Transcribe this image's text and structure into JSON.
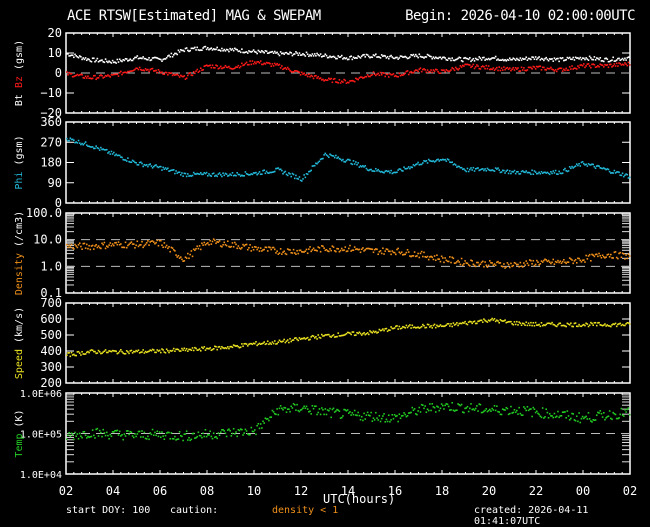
{
  "header": {
    "title": "ACE RTSW[Estimated] MAG & SWEPAM",
    "begin": "Begin: 2026-04-10 02:00:00UTC"
  },
  "footer": {
    "start_doy": "start DOY: 100",
    "caution": "caution:",
    "caution_note": "density < 1",
    "created": "created: 2026-04-11 01:41:07UTC"
  },
  "xaxis": {
    "label": "UTC(hours)",
    "ticks": [
      "02",
      "04",
      "06",
      "08",
      "10",
      "12",
      "14",
      "16",
      "18",
      "20",
      "22",
      "00",
      "02"
    ]
  },
  "colors": {
    "bt": "#ffffff",
    "bz": "#ff1a1a",
    "phi": "#22b8d8",
    "density": "#f0901a",
    "speed": "#e8e020",
    "temp": "#22cc22",
    "axis": "#ffffff",
    "dashed": "#bbbbbb"
  },
  "chart_data": [
    {
      "type": "scatter",
      "title": "Bt / Bz",
      "ylabel": "Bt  Bz  (gsm)",
      "ylim": [
        -20,
        20
      ],
      "yticks": [
        "20",
        "10",
        "0",
        "−10",
        "−20"
      ],
      "x": [
        2,
        3,
        4,
        5,
        6,
        7,
        8,
        9,
        10,
        11,
        12,
        13,
        14,
        15,
        16,
        17,
        18,
        19,
        20,
        21,
        22,
        23,
        24,
        25,
        26
      ],
      "series": [
        {
          "name": "Bt",
          "values": [
            10,
            7,
            6,
            8,
            7,
            12,
            13,
            12,
            11,
            10,
            10,
            9,
            8,
            9,
            8,
            9,
            8,
            7,
            8,
            7,
            8,
            7,
            8,
            7,
            8
          ]
        },
        {
          "name": "Bz",
          "values": [
            0,
            -2,
            -1,
            3,
            1,
            -2,
            4,
            3,
            6,
            4,
            0,
            -3,
            -4,
            0,
            -1,
            2,
            1,
            4,
            3,
            2,
            3,
            2,
            4,
            4,
            5
          ]
        }
      ],
      "reference_line": 0
    },
    {
      "type": "scatter",
      "title": "Phi",
      "ylabel": "Phi (gsm)",
      "ylim": [
        0,
        360
      ],
      "yticks": [
        "360",
        "270",
        "180",
        "90",
        "0"
      ],
      "x": [
        2,
        3,
        4,
        5,
        6,
        7,
        8,
        9,
        10,
        11,
        12,
        13,
        14,
        15,
        16,
        17,
        18,
        19,
        20,
        21,
        22,
        23,
        24,
        25,
        26
      ],
      "series": [
        {
          "name": "Phi",
          "values": [
            290,
            260,
            220,
            180,
            160,
            130,
            130,
            130,
            135,
            150,
            110,
            220,
            190,
            150,
            140,
            180,
            200,
            150,
            155,
            140,
            140,
            140,
            180,
            150,
            120
          ]
        }
      ]
    },
    {
      "type": "scatter",
      "title": "Density",
      "ylabel": "Density (/cm3)",
      "yscale": "log",
      "ylim": [
        0.1,
        100.0
      ],
      "yticks": [
        "100.0",
        "10.0",
        "1.0",
        "0.1"
      ],
      "x": [
        2,
        3,
        4,
        5,
        6,
        7,
        8,
        9,
        10,
        11,
        12,
        13,
        14,
        15,
        16,
        17,
        18,
        19,
        20,
        21,
        22,
        23,
        24,
        25,
        26
      ],
      "series": [
        {
          "name": "Density",
          "values": [
            6,
            6,
            7,
            7,
            8,
            2,
            9,
            7,
            5,
            4,
            4,
            5,
            5,
            4,
            4,
            3,
            2,
            1.5,
            1.3,
            1.2,
            1.5,
            1.5,
            2,
            3,
            2.5
          ]
        }
      ],
      "reference_lines": [
        10.0,
        1.0
      ]
    },
    {
      "type": "scatter",
      "title": "Speed",
      "ylabel": "Speed (km/s)",
      "ylim": [
        200,
        700
      ],
      "yticks": [
        "700",
        "600",
        "500",
        "400",
        "300",
        "200"
      ],
      "x": [
        2,
        3,
        4,
        5,
        6,
        7,
        8,
        9,
        10,
        11,
        12,
        13,
        14,
        15,
        16,
        17,
        18,
        19,
        20,
        21,
        22,
        23,
        24,
        25,
        26
      ],
      "series": [
        {
          "name": "Speed",
          "values": [
            380,
            400,
            400,
            400,
            405,
            410,
            420,
            430,
            450,
            460,
            480,
            500,
            510,
            520,
            550,
            560,
            560,
            580,
            600,
            580,
            570,
            570,
            570,
            570,
            570
          ]
        }
      ]
    },
    {
      "type": "scatter",
      "title": "Temp",
      "ylabel": "Temp (K)",
      "yscale": "log",
      "ylim": [
        10000,
        1000000
      ],
      "yticks": [
        "1.0E+06",
        "1.0E+05",
        "1.0E+04"
      ],
      "x": [
        2,
        3,
        4,
        5,
        6,
        7,
        8,
        9,
        10,
        11,
        12,
        13,
        14,
        15,
        16,
        17,
        18,
        19,
        20,
        21,
        22,
        23,
        24,
        25,
        26
      ],
      "series": [
        {
          "name": "Temp",
          "values": [
            90000,
            110000,
            100000,
            95000,
            100000,
            90000,
            100000,
            110000,
            120000,
            400000,
            450000,
            350000,
            300000,
            280000,
            250000,
            400000,
            500000,
            450000,
            400000,
            400000,
            350000,
            300000,
            250000,
            300000,
            350000
          ]
        }
      ],
      "reference_line": 100000
    }
  ]
}
